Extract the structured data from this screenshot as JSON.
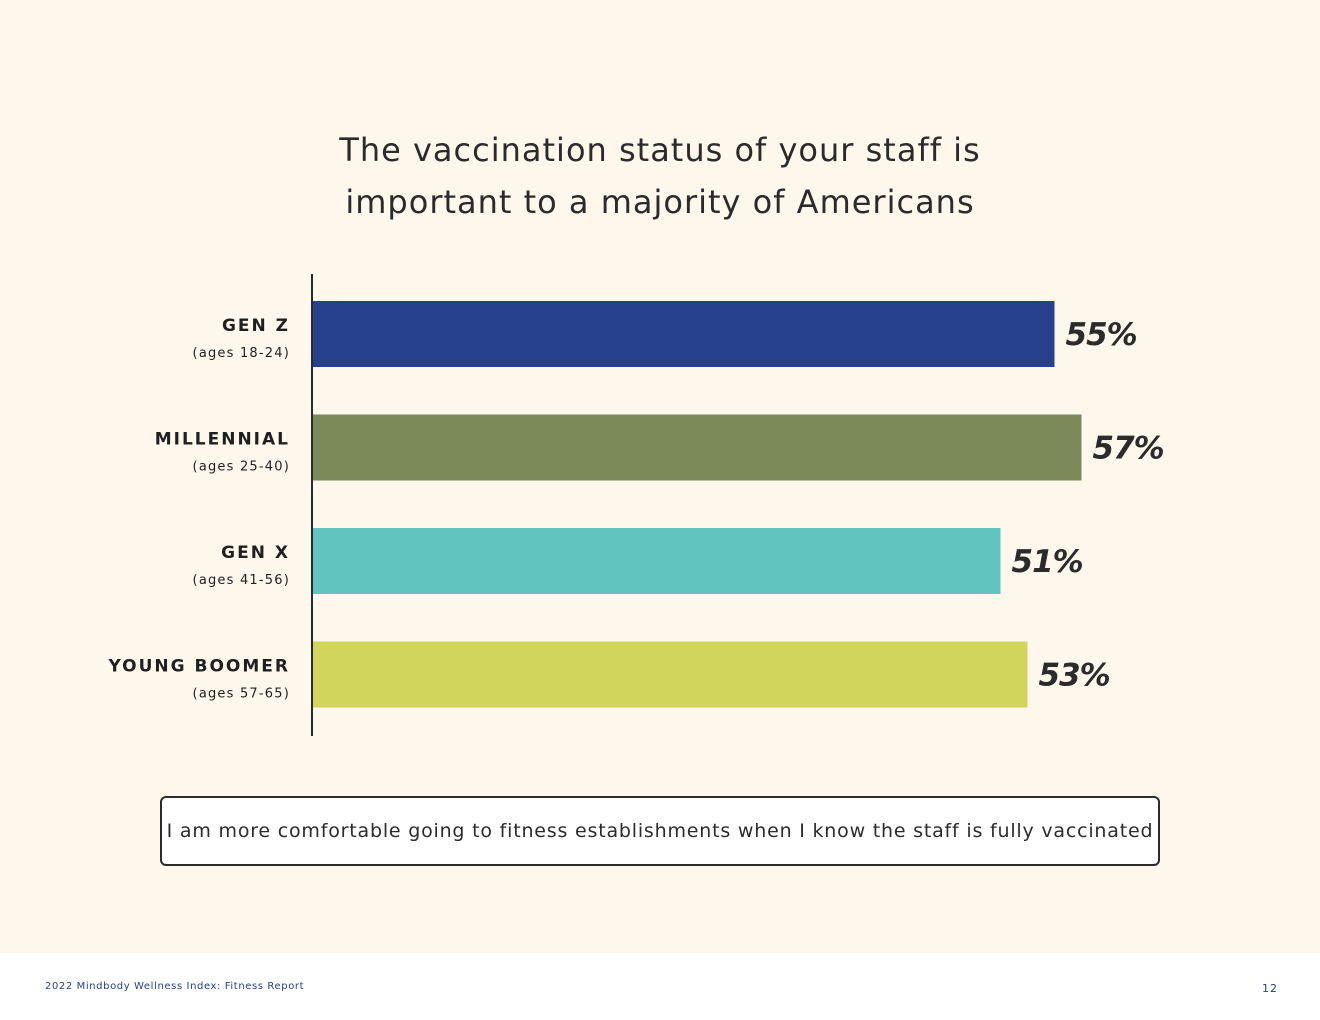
{
  "page": {
    "title_lines": [
      "The vaccination status of your staff is",
      "important to a majority of Americans"
    ],
    "statement": "I am more comfortable going to fitness establishments when I know the staff is fully vaccinated",
    "footer": {
      "report_name": "2022 Mindbody Wellness Index: Fitness Report",
      "page_number": "12"
    },
    "background_color": "#fef7ec"
  },
  "chart_data": {
    "type": "bar",
    "orientation": "horizontal",
    "title": "The vaccination status of your staff is important to a majority of Americans",
    "categories": [
      "GEN Z",
      "MILLENNIAL",
      "GEN X",
      "YOUNG BOOMER"
    ],
    "subcategories": [
      "(ages 18-24)",
      "(ages 25-40)",
      "(ages 41-56)",
      "(ages 57-65)"
    ],
    "values": [
      55,
      57,
      51,
      53
    ],
    "value_labels": [
      "55%",
      "57%",
      "51%",
      "53%"
    ],
    "colors": [
      "#26408b",
      "#7b8a58",
      "#62c4be",
      "#d1d55a"
    ],
    "xlim": [
      0,
      100
    ],
    "grid": false,
    "legend": "none",
    "axis_color": "#2b2b2b"
  }
}
